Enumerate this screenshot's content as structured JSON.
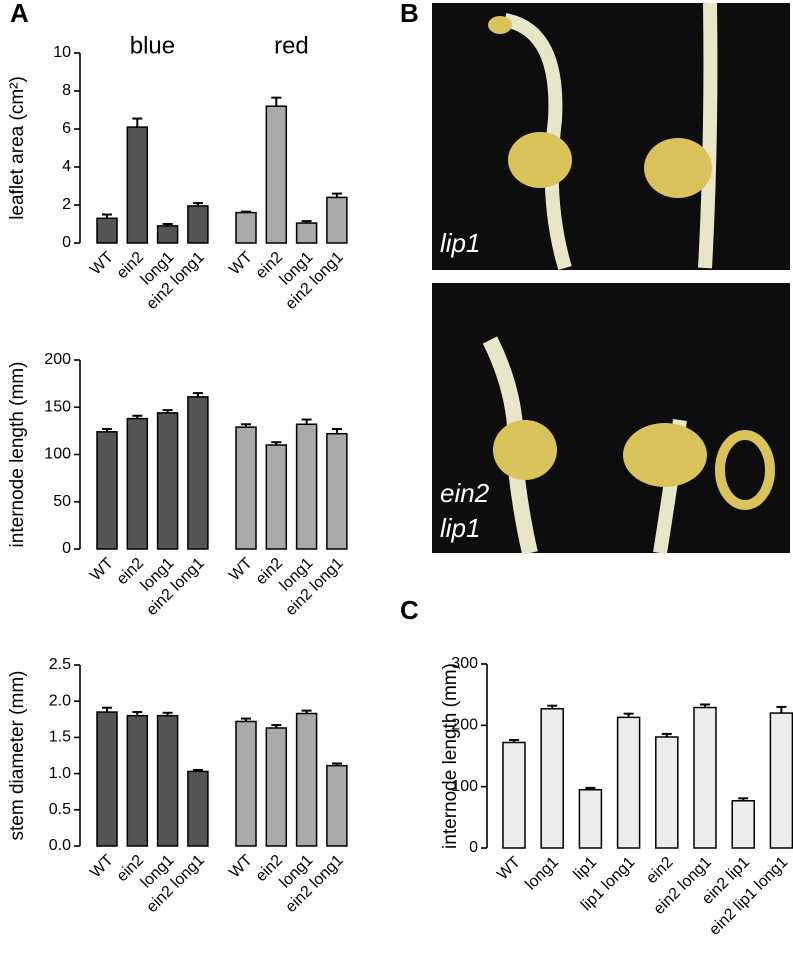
{
  "panels": {
    "a": "A",
    "b": "B",
    "c": "C"
  },
  "photos": [
    {
      "label_lines": [
        "lip1"
      ]
    },
    {
      "label_lines": [
        "ein2",
        "lip1"
      ]
    }
  ],
  "chart_data": [
    {
      "type": "bar",
      "ylabel": "leaflet area (cm²)",
      "categories": [
        "WT",
        "ein2",
        "long1",
        "ein2 long1"
      ],
      "series": [
        {
          "name": "blue",
          "color": "#555555",
          "values": [
            1.3,
            6.1,
            0.9,
            1.95
          ],
          "errors": [
            0.2,
            0.45,
            0.1,
            0.15
          ]
        },
        {
          "name": "red",
          "color": "#a9a9ab",
          "values": [
            1.6,
            7.2,
            1.05,
            2.4
          ],
          "errors": [
            0.05,
            0.45,
            0.1,
            0.2
          ]
        }
      ],
      "ylim": [
        0,
        10
      ],
      "yticks": [
        0,
        2,
        4,
        6,
        8,
        10
      ]
    },
    {
      "type": "bar",
      "ylabel": "internode length (mm)",
      "categories": [
        "WT",
        "ein2",
        "long1",
        "ein2 long1"
      ],
      "series": [
        {
          "color": "#555555",
          "values": [
            124,
            138,
            144,
            161
          ],
          "errors": [
            3,
            3,
            3,
            4
          ]
        },
        {
          "color": "#a9a9ab",
          "values": [
            129,
            110,
            132,
            122
          ],
          "errors": [
            3,
            3,
            5,
            5
          ]
        }
      ],
      "ylim": [
        0,
        200
      ],
      "yticks": [
        0,
        50,
        100,
        150,
        200
      ]
    },
    {
      "type": "bar",
      "ylabel": "stem diameter (mm)",
      "categories": [
        "WT",
        "ein2",
        "long1",
        "ein2 long1"
      ],
      "series": [
        {
          "color": "#555555",
          "values": [
            1.85,
            1.8,
            1.8,
            1.03
          ],
          "errors": [
            0.06,
            0.05,
            0.04,
            0.02
          ]
        },
        {
          "color": "#a9a9ab",
          "values": [
            1.72,
            1.63,
            1.83,
            1.11
          ],
          "errors": [
            0.04,
            0.04,
            0.04,
            0.03
          ]
        }
      ],
      "ylim": [
        0,
        2.5
      ],
      "yticks": [
        {
          "value": 0,
          "label": "0.0"
        },
        0.5,
        {
          "value": 1,
          "label": "1.0"
        },
        1.5,
        {
          "value": 2,
          "label": "2.0"
        },
        2.5
      ]
    },
    {
      "type": "bar",
      "ylabel": "internode length (mm)",
      "categories": [
        "WT",
        "long1",
        "lip1",
        "lip1 long1",
        "ein2",
        "ein2 long1",
        "ein2 lip1",
        "ein2 lip1 long1"
      ],
      "color": "#ececec",
      "values": [
        172,
        227,
        95,
        213,
        181,
        229,
        77,
        220
      ],
      "errors": [
        4,
        5,
        3,
        6,
        5,
        5,
        4,
        10
      ],
      "ylim": [
        0,
        300
      ],
      "yticks": [
        0,
        100,
        200,
        300
      ]
    }
  ]
}
